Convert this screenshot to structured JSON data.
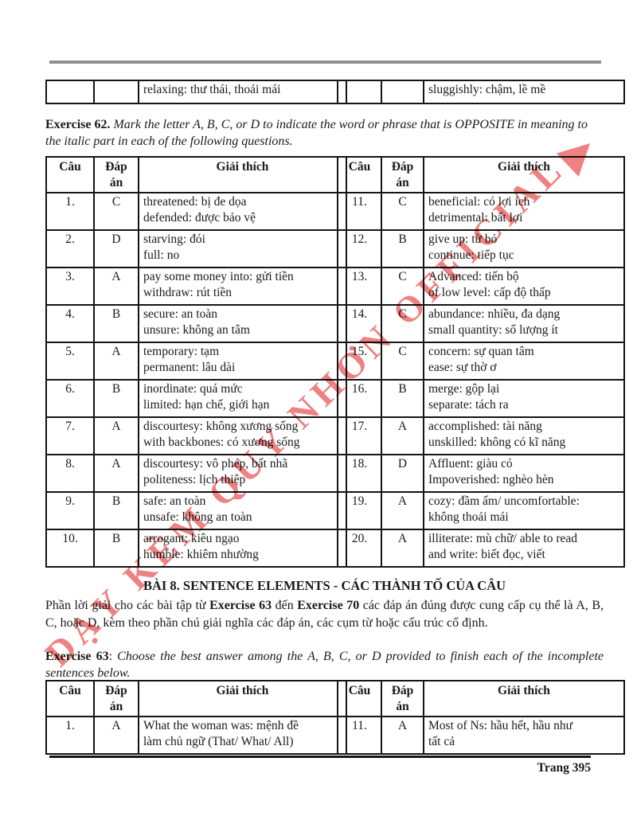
{
  "colors": {
    "watermark": "#ea5f5f",
    "top_rule": "#8f8f8f"
  },
  "carryover": {
    "left_text": "relaxing: thư thái, thoải mái",
    "right_text": "sluggishly: chậm, lề mề"
  },
  "ex62": {
    "label": "Exercise 62.",
    "instructions": " Mark the letter A, B, C, or D to indicate the word or phrase that is OPPOSITE in meaning to the italic part in each of the following questions.",
    "headers": [
      "Câu",
      "Đáp án",
      "Giải thích"
    ],
    "left": [
      {
        "num": "1.",
        "ans": "C",
        "line1": "threatened: bị đe dọa",
        "line2": "defended: được bảo vệ"
      },
      {
        "num": "2.",
        "ans": "D",
        "line1": "starving: đói",
        "line2": "full: no"
      },
      {
        "num": "3.",
        "ans": "A",
        "line1": "pay some money into: gửi tiền",
        "line2": "withdraw: rút tiền"
      },
      {
        "num": "4.",
        "ans": "B",
        "line1": "secure: an toàn",
        "line2": "unsure: không an tâm"
      },
      {
        "num": "5.",
        "ans": "A",
        "line1": "temporary: tạm",
        "line2": "permanent: lâu dài"
      },
      {
        "num": "6.",
        "ans": "B",
        "line1": "inordinate: quá mức",
        "line2": "limited: hạn chế, giới hạn"
      },
      {
        "num": "7.",
        "ans": "A",
        "line1": "discourtesy: không xương sống",
        "line2": "with backbones: có xương sống"
      },
      {
        "num": "8.",
        "ans": "A",
        "line1": "discourtesy: vô phép, bất nhã",
        "line2": "politeness: lịch thiệp"
      },
      {
        "num": "9.",
        "ans": "B",
        "line1": "safe: an toàn",
        "line2": "unsafe: không an toàn"
      },
      {
        "num": "10.",
        "ans": "B",
        "line1": "arrogant: kiêu ngạo",
        "line2": "humble: khiêm nhường"
      }
    ],
    "right": [
      {
        "num": "11.",
        "ans": "C",
        "line1": "beneficial: có lợi ích",
        "line2": "detrimental: bất lợi"
      },
      {
        "num": "12.",
        "ans": "B",
        "line1": "give up: từ bỏ",
        "line2": "continue: tiếp tục"
      },
      {
        "num": "13.",
        "ans": "C",
        "line1": "Advanced: tiến bộ",
        "line2": "of low level: cấp độ thấp"
      },
      {
        "num": "14.",
        "ans": "C",
        "line1": "abundance: nhiều, đa dạng",
        "line2": "small quantity: số lượng ít"
      },
      {
        "num": "15.",
        "ans": "C",
        "line1": "concern: sự quan tâm",
        "line2": "ease: sự thờ ơ"
      },
      {
        "num": "16.",
        "ans": "B",
        "line1": "merge: gộp lại",
        "line2": "separate: tách ra"
      },
      {
        "num": "17.",
        "ans": "A",
        "line1": "accomplished: tài năng",
        "line2": "unskilled: không có kĩ năng"
      },
      {
        "num": "18.",
        "ans": "D",
        "line1": "Affluent: giàu có",
        "line2": "Impoverished: nghèo hèn"
      },
      {
        "num": "19.",
        "ans": "A",
        "line1": "cozy: đầm ấm/ uncomfortable:",
        "line2": "không thoải mái"
      },
      {
        "num": "20.",
        "ans": "A",
        "line1": "illiterate: mù chữ/ able to read",
        "line2": "and write: biết đọc, viết"
      }
    ]
  },
  "section8": {
    "heading": "BÀI 8. SENTENCE ELEMENTS - CÁC THÀNH TỐ CỦA CÂU",
    "p1": "Phần lời giải cho các bài tập từ ",
    "b1": "Exercise 63",
    "p2": " đến ",
    "b2": "Exercise 70",
    "p3": " các đáp án đúng được cung cấp cụ thể là A, B, C, hoặc D, kèm theo phần chú giải nghĩa các đáp án, các cụm từ hoặc cấu trúc cố định."
  },
  "ex63": {
    "label": "Exercise 63",
    "colon": ": ",
    "instructions": "Choose the best answer among the A, B, C, or D provided to finish each of the incomplete sentences below.",
    "headers": [
      "Câu",
      "Đáp án",
      "Giải thích"
    ],
    "left": [
      {
        "num": "1.",
        "ans": "A",
        "line1": "What the woman was: mệnh đề",
        "line2": "làm chủ ngữ (That/ What/ All)"
      }
    ],
    "right": [
      {
        "num": "11.",
        "ans": "A",
        "line1": "Most of Ns: hầu hết, hầu như",
        "line2": "tất cả"
      }
    ]
  },
  "watermark": {
    "text": "DẠY KÈM QUY NHƠN OFFICIAL"
  },
  "footer": {
    "page_label": "Trang 395"
  }
}
